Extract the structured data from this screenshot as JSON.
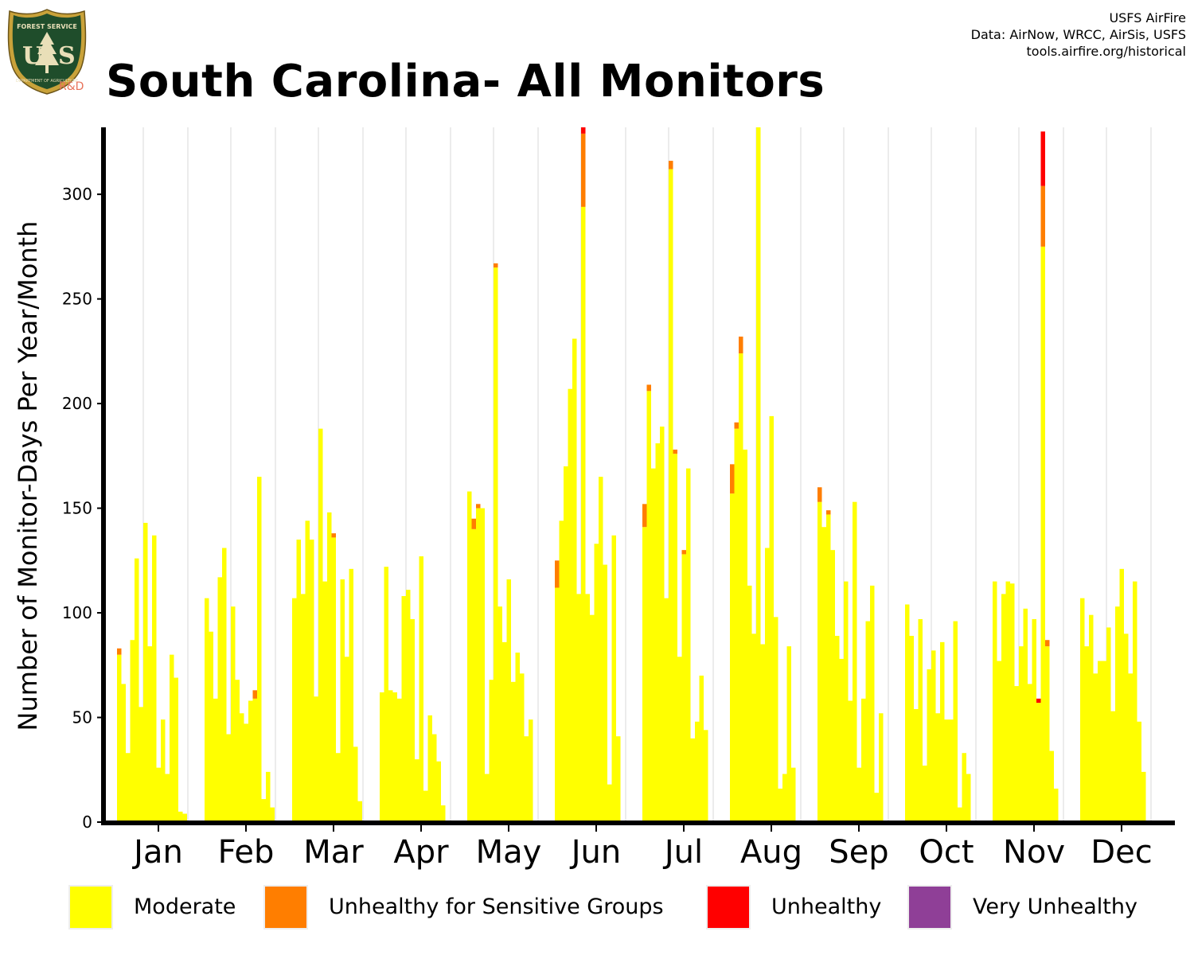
{
  "title": "South Carolina- All Monitors",
  "credits": [
    "USFS AirFire",
    "Data: AirNow, WRCC, AirSis, USFS",
    "tools.airfire.org/historical"
  ],
  "logo": {
    "top_text": "FOREST SERVICE",
    "letters_left": "U",
    "letters_right": "S",
    "bottom_text": "DEPARTMENT OF AGRICULTURE",
    "badge": "R&D"
  },
  "colors": {
    "moderate": "#FFFF00",
    "usg": "#FF7E00",
    "unhealthy": "#FF0000",
    "very_unhealthy": "#8F3F97",
    "axis": "#000000",
    "grid": "#d9d9d9"
  },
  "legend": [
    {
      "label": "Moderate",
      "color": "#FFFF00"
    },
    {
      "label": "Unhealthy for Sensitive Groups",
      "color": "#FF7E00"
    },
    {
      "label": "Unhealthy",
      "color": "#FF0000"
    },
    {
      "label": "Very Unhealthy",
      "color": "#8F3F97"
    }
  ],
  "chart_data": {
    "type": "bar",
    "stacked": true,
    "ylabel": "Number of Monitor-Days Per Year/Month",
    "xlabel": "",
    "ylim": [
      0,
      332
    ],
    "yticks": [
      0,
      50,
      100,
      150,
      200,
      250,
      300
    ],
    "years_per_month": 20,
    "categories": [
      "Jan",
      "Feb",
      "Mar",
      "Apr",
      "May",
      "Jun",
      "Jul",
      "Aug",
      "Sep",
      "Oct",
      "Nov",
      "Dec"
    ],
    "series": [
      {
        "name": "Moderate",
        "color": "#FFFF00",
        "months": [
          [
            80,
            66,
            33,
            87,
            126,
            55,
            143,
            84,
            137,
            26,
            49,
            23,
            80,
            69,
            5,
            4,
            0,
            0,
            0,
            0
          ],
          [
            107,
            91,
            59,
            117,
            131,
            42,
            103,
            68,
            52,
            47,
            58,
            59,
            165,
            11,
            24,
            7,
            0,
            0,
            0,
            0
          ],
          [
            107,
            135,
            109,
            144,
            135,
            60,
            188,
            115,
            148,
            136,
            33,
            116,
            79,
            121,
            36,
            10,
            0,
            0,
            0,
            0
          ],
          [
            62,
            122,
            63,
            62,
            59,
            108,
            111,
            97,
            30,
            127,
            15,
            51,
            42,
            29,
            8,
            0,
            0,
            0,
            0,
            0
          ],
          [
            158,
            140,
            150,
            150,
            23,
            68,
            265,
            103,
            86,
            116,
            67,
            81,
            71,
            41,
            49,
            0,
            0,
            0,
            0,
            0
          ],
          [
            112,
            144,
            170,
            207,
            231,
            109,
            294,
            109,
            99,
            133,
            165,
            123,
            18,
            137,
            41,
            0,
            0,
            0,
            0,
            0
          ],
          [
            141,
            206,
            169,
            181,
            189,
            107,
            312,
            176,
            79,
            128,
            169,
            40,
            48,
            70,
            44,
            0,
            0,
            0,
            0,
            0
          ],
          [
            157,
            188,
            224,
            178,
            113,
            90,
            335,
            85,
            131,
            194,
            98,
            16,
            23,
            84,
            26,
            0,
            0,
            0,
            0,
            0
          ],
          [
            153,
            141,
            147,
            130,
            89,
            78,
            115,
            58,
            153,
            26,
            59,
            96,
            113,
            14,
            52,
            0,
            0,
            0,
            0,
            0
          ],
          [
            104,
            89,
            54,
            97,
            27,
            73,
            82,
            52,
            86,
            49,
            49,
            96,
            7,
            33,
            23,
            0,
            0,
            0,
            0,
            0
          ],
          [
            115,
            77,
            109,
            115,
            114,
            65,
            84,
            102,
            66,
            97,
            57,
            275,
            84,
            34,
            16,
            0,
            0,
            0,
            0,
            0
          ],
          [
            107,
            84,
            99,
            71,
            77,
            77,
            93,
            53,
            103,
            121,
            90,
            71,
            115,
            48,
            24,
            0,
            0,
            0,
            0,
            0
          ]
        ]
      },
      {
        "name": "Unhealthy for Sensitive Groups",
        "color": "#FF7E00",
        "months": [
          [
            3,
            0,
            0,
            0,
            0,
            0,
            0,
            0,
            0,
            0,
            0,
            0,
            0,
            0,
            0,
            0,
            0,
            0,
            0,
            0
          ],
          [
            0,
            0,
            0,
            0,
            0,
            0,
            0,
            0,
            0,
            0,
            0,
            4,
            0,
            0,
            0,
            0,
            0,
            0,
            0,
            0
          ],
          [
            0,
            0,
            0,
            0,
            0,
            0,
            0,
            0,
            0,
            2,
            0,
            0,
            0,
            0,
            0,
            0,
            0,
            0,
            0,
            0
          ],
          [
            0,
            0,
            0,
            0,
            0,
            0,
            0,
            0,
            0,
            0,
            0,
            0,
            0,
            0,
            0,
            0,
            0,
            0,
            0,
            0
          ],
          [
            0,
            5,
            2,
            0,
            0,
            0,
            2,
            0,
            0,
            0,
            0,
            0,
            0,
            0,
            0,
            0,
            0,
            0,
            0,
            0
          ],
          [
            13,
            0,
            0,
            0,
            0,
            0,
            35,
            0,
            0,
            0,
            0,
            0,
            0,
            0,
            0,
            0,
            0,
            0,
            0,
            0
          ],
          [
            11,
            3,
            0,
            0,
            0,
            0,
            4,
            2,
            0,
            2,
            0,
            0,
            0,
            0,
            0,
            0,
            0,
            0,
            0,
            0
          ],
          [
            14,
            3,
            8,
            0,
            0,
            0,
            0,
            0,
            0,
            0,
            0,
            0,
            0,
            0,
            0,
            0,
            0,
            0,
            0,
            0
          ],
          [
            7,
            0,
            2,
            0,
            0,
            0,
            0,
            0,
            0,
            0,
            0,
            0,
            0,
            0,
            0,
            0,
            0,
            0,
            0,
            0
          ],
          [
            0,
            0,
            0,
            0,
            0,
            0,
            0,
            0,
            0,
            0,
            0,
            0,
            0,
            0,
            0,
            0,
            0,
            0,
            0,
            0
          ],
          [
            0,
            0,
            0,
            0,
            0,
            0,
            0,
            0,
            0,
            0,
            0,
            29,
            3,
            0,
            0,
            0,
            0,
            0,
            0,
            0
          ],
          [
            0,
            0,
            0,
            0,
            0,
            0,
            0,
            0,
            0,
            0,
            0,
            0,
            0,
            0,
            0,
            0,
            0,
            0,
            0,
            0
          ]
        ]
      },
      {
        "name": "Unhealthy",
        "color": "#FF0000",
        "months": [
          [
            0,
            0,
            0,
            0,
            0,
            0,
            0,
            0,
            0,
            0,
            0,
            0,
            0,
            0,
            0,
            0,
            0,
            0,
            0,
            0
          ],
          [
            0,
            0,
            0,
            0,
            0,
            0,
            0,
            0,
            0,
            0,
            0,
            0,
            0,
            0,
            0,
            0,
            0,
            0,
            0,
            0
          ],
          [
            0,
            0,
            0,
            0,
            0,
            0,
            0,
            0,
            0,
            0,
            0,
            0,
            0,
            0,
            0,
            0,
            0,
            0,
            0,
            0
          ],
          [
            0,
            0,
            0,
            0,
            0,
            0,
            0,
            0,
            0,
            0,
            0,
            0,
            0,
            0,
            0,
            0,
            0,
            0,
            0,
            0
          ],
          [
            0,
            0,
            0,
            0,
            0,
            0,
            0,
            0,
            0,
            0,
            0,
            0,
            0,
            0,
            0,
            0,
            0,
            0,
            0,
            0
          ],
          [
            0,
            0,
            0,
            0,
            0,
            0,
            3,
            0,
            0,
            0,
            0,
            0,
            0,
            0,
            0,
            0,
            0,
            0,
            0,
            0
          ],
          [
            0,
            0,
            0,
            0,
            0,
            0,
            0,
            0,
            0,
            0,
            0,
            0,
            0,
            0,
            0,
            0,
            0,
            0,
            0,
            0
          ],
          [
            0,
            0,
            0,
            0,
            0,
            0,
            0,
            0,
            0,
            0,
            0,
            0,
            0,
            0,
            0,
            0,
            0,
            0,
            0,
            0
          ],
          [
            0,
            0,
            0,
            0,
            0,
            0,
            0,
            0,
            0,
            0,
            0,
            0,
            0,
            0,
            0,
            0,
            0,
            0,
            0,
            0
          ],
          [
            0,
            0,
            0,
            0,
            0,
            0,
            0,
            0,
            0,
            0,
            0,
            0,
            0,
            0,
            0,
            0,
            0,
            0,
            0,
            0
          ],
          [
            0,
            0,
            0,
            0,
            0,
            0,
            0,
            0,
            0,
            0,
            2,
            26,
            0,
            0,
            0,
            0,
            0,
            0,
            0,
            0
          ],
          [
            0,
            0,
            0,
            0,
            0,
            0,
            0,
            0,
            0,
            0,
            0,
            0,
            0,
            0,
            0,
            0,
            0,
            0,
            0,
            0
          ]
        ]
      },
      {
        "name": "Very Unhealthy",
        "color": "#8F3F97",
        "months": [
          [
            0,
            0,
            0,
            0,
            0,
            0,
            0,
            0,
            0,
            0,
            0,
            0,
            0,
            0,
            0,
            0,
            0,
            0,
            0,
            0
          ],
          [
            0,
            0,
            0,
            0,
            0,
            0,
            0,
            0,
            0,
            0,
            0,
            0,
            0,
            0,
            0,
            0,
            0,
            0,
            0,
            0
          ],
          [
            0,
            0,
            0,
            0,
            0,
            0,
            0,
            0,
            0,
            0,
            0,
            0,
            0,
            0,
            0,
            0,
            0,
            0,
            0,
            0
          ],
          [
            0,
            0,
            0,
            0,
            0,
            0,
            0,
            0,
            0,
            0,
            0,
            0,
            0,
            0,
            0,
            0,
            0,
            0,
            0,
            0
          ],
          [
            0,
            0,
            0,
            0,
            0,
            0,
            0,
            0,
            0,
            0,
            0,
            0,
            0,
            0,
            0,
            0,
            0,
            0,
            0,
            0
          ],
          [
            0,
            0,
            0,
            0,
            0,
            0,
            0,
            0,
            0,
            0,
            0,
            0,
            0,
            0,
            0,
            0,
            0,
            0,
            0,
            0
          ],
          [
            0,
            0,
            0,
            0,
            0,
            0,
            0,
            0,
            0,
            0,
            0,
            0,
            0,
            0,
            0,
            0,
            0,
            0,
            0,
            0
          ],
          [
            0,
            0,
            0,
            0,
            0,
            0,
            0,
            0,
            0,
            0,
            0,
            0,
            0,
            0,
            0,
            0,
            0,
            0,
            0,
            0
          ],
          [
            0,
            0,
            0,
            0,
            0,
            0,
            0,
            0,
            0,
            0,
            0,
            0,
            0,
            0,
            0,
            0,
            0,
            0,
            0,
            0
          ],
          [
            0,
            0,
            0,
            0,
            0,
            0,
            0,
            0,
            0,
            0,
            0,
            0,
            0,
            0,
            0,
            0,
            0,
            0,
            0,
            0
          ],
          [
            0,
            0,
            0,
            0,
            0,
            0,
            0,
            0,
            0,
            0,
            0,
            0,
            0,
            0,
            0,
            0,
            0,
            0,
            0,
            0
          ],
          [
            0,
            0,
            0,
            0,
            0,
            0,
            0,
            0,
            0,
            0,
            0,
            0,
            0,
            0,
            0,
            0,
            0,
            0,
            0,
            0
          ]
        ]
      }
    ],
    "grid": true,
    "legend_position": "bottom"
  }
}
